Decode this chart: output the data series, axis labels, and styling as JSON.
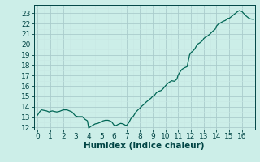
{
  "xlabel": "Humidex (Indice chaleur)",
  "ylabel": "",
  "xlim": [
    -0.3,
    17.0
  ],
  "ylim": [
    11.8,
    23.8
  ],
  "xticks": [
    0,
    1,
    2,
    3,
    4,
    5,
    6,
    7,
    8,
    9,
    10,
    11,
    12,
    13,
    14,
    15,
    16
  ],
  "yticks": [
    12,
    13,
    14,
    15,
    16,
    17,
    18,
    19,
    20,
    21,
    22,
    23
  ],
  "bg_color": "#cceee8",
  "line_color": "#006655",
  "grid_major_color": "#aacccc",
  "grid_minor_color": "#c8e8e4",
  "x": [
    0.0,
    0.15,
    0.3,
    0.5,
    0.7,
    0.9,
    1.0,
    1.15,
    1.3,
    1.5,
    1.7,
    1.9,
    2.0,
    2.15,
    2.3,
    2.5,
    2.7,
    2.9,
    3.0,
    3.15,
    3.3,
    3.5,
    3.7,
    3.9,
    4.0,
    4.15,
    4.3,
    4.5,
    4.7,
    4.9,
    5.0,
    5.15,
    5.3,
    5.5,
    5.65,
    5.8,
    6.0,
    6.15,
    6.3,
    6.5,
    6.7,
    6.9,
    7.0,
    7.15,
    7.3,
    7.5,
    7.7,
    7.9,
    8.0,
    8.15,
    8.3,
    8.5,
    8.7,
    8.9,
    9.0,
    9.15,
    9.3,
    9.5,
    9.65,
    9.8,
    10.0,
    10.15,
    10.3,
    10.5,
    10.7,
    10.9,
    11.0,
    11.15,
    11.3,
    11.5,
    11.7,
    11.9,
    12.0,
    12.15,
    12.3,
    12.5,
    12.7,
    12.9,
    13.0,
    13.15,
    13.3,
    13.5,
    13.7,
    13.9,
    14.0,
    14.15,
    14.3,
    14.5,
    14.7,
    14.9,
    15.0,
    15.15,
    15.3,
    15.5,
    15.65,
    15.8,
    16.0,
    16.15,
    16.3,
    16.5,
    16.65,
    16.9
  ],
  "y": [
    13.2,
    13.5,
    13.7,
    13.65,
    13.6,
    13.5,
    13.55,
    13.6,
    13.55,
    13.5,
    13.55,
    13.65,
    13.7,
    13.7,
    13.7,
    13.6,
    13.5,
    13.2,
    13.1,
    13.05,
    13.05,
    13.05,
    12.8,
    12.65,
    11.95,
    12.1,
    12.2,
    12.35,
    12.4,
    12.5,
    12.6,
    12.65,
    12.7,
    12.7,
    12.65,
    12.55,
    12.2,
    12.2,
    12.3,
    12.4,
    12.35,
    12.2,
    12.25,
    12.5,
    12.85,
    13.1,
    13.5,
    13.75,
    13.85,
    14.05,
    14.2,
    14.45,
    14.65,
    14.85,
    15.0,
    15.1,
    15.35,
    15.5,
    15.55,
    15.7,
    16.0,
    16.2,
    16.35,
    16.5,
    16.45,
    16.65,
    17.05,
    17.35,
    17.6,
    17.75,
    17.85,
    19.0,
    19.2,
    19.35,
    19.55,
    20.0,
    20.15,
    20.35,
    20.55,
    20.7,
    20.8,
    21.0,
    21.25,
    21.45,
    21.75,
    21.95,
    22.05,
    22.2,
    22.3,
    22.5,
    22.5,
    22.65,
    22.8,
    23.0,
    23.15,
    23.25,
    23.15,
    22.95,
    22.75,
    22.55,
    22.45,
    22.4
  ],
  "font_color": "#004444",
  "tick_fontsize": 6.5,
  "label_fontsize": 7.5,
  "linewidth": 0.9
}
